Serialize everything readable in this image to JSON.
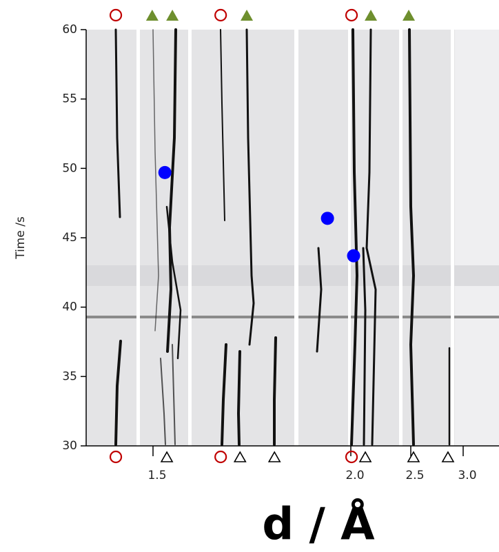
{
  "chart_data": {
    "type": "scatter",
    "ylabel": "Time /s",
    "xlabel": "d / Å",
    "ylim": [
      30,
      60
    ],
    "yticks": [
      30,
      35,
      40,
      45,
      50,
      55,
      60
    ],
    "xticks": [
      1.5,
      {
        "value": 2,
        "label": "2.0"
      },
      2.5,
      {
        "value": 3,
        "label": "3.0"
      }
    ],
    "top_markers": [
      {
        "marker": "circle-open",
        "color": "#c00000",
        "x": [
          1.406,
          1.671,
          2.006
        ]
      },
      {
        "marker": "triangle-filled",
        "color": "#6e8f2e",
        "x": [
          1.498,
          1.549,
          1.737,
          2.167,
          2.483
        ]
      }
    ],
    "bottom_markers": [
      {
        "marker": "circle-open",
        "color": "#c00000",
        "x": [
          1.406,
          1.671,
          2.006
        ]
      },
      {
        "marker": "triangle-open",
        "color": "#000000",
        "x": [
          1.535,
          1.72,
          1.807,
          2.121,
          2.526,
          2.855
        ]
      }
    ],
    "series": [
      {
        "marker": "dot",
        "color": "#0000ff",
        "x": [
          1.53,
          1.941,
          2.023
        ],
        "values": [
          49.7,
          46.4,
          43.7
        ]
      }
    ]
  }
}
